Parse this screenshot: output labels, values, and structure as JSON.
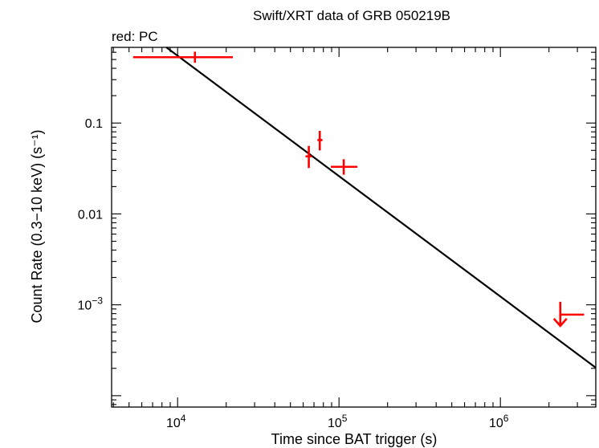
{
  "chart_data": {
    "type": "scatter",
    "title": "Swift/XRT data of GRB 050219B",
    "subtitle": "red: PC",
    "xlabel": "Time since BAT trigger (s)",
    "ylabel": "Count Rate (0.3−10 keV) (s⁻¹)",
    "xscale": "log",
    "yscale": "log",
    "xlim": [
      3900,
      3900000
    ],
    "ylim": [
      7.5e-05,
      0.68
    ],
    "grid": false,
    "x_tick_labels": [
      {
        "value": 10000,
        "base": "10",
        "exp": "4"
      },
      {
        "value": 100000,
        "base": "10",
        "exp": "5"
      },
      {
        "value": 1000000,
        "base": "10",
        "exp": "6"
      }
    ],
    "y_tick_labels": [
      {
        "value": 0.1,
        "text": "0.1"
      },
      {
        "value": 0.01,
        "text": "0.01"
      },
      {
        "value": 0.001,
        "base": "10",
        "exp": "−3"
      }
    ],
    "series": [
      {
        "mode": "PC",
        "color": "#ff0000",
        "points": [
          {
            "x": 12800,
            "xlo": 5300,
            "xhi": 22000,
            "y": 0.53,
            "ylo": 0.46,
            "yhi": 0.61
          },
          {
            "x": 65000,
            "xlo": 62000,
            "xhi": 68000,
            "y": 0.043,
            "ylo": 0.032,
            "yhi": 0.056
          },
          {
            "x": 76000,
            "xlo": 73500,
            "xhi": 79000,
            "y": 0.065,
            "ylo": 0.05,
            "yhi": 0.082
          },
          {
            "x": 107000,
            "xlo": 89000,
            "xhi": 130000,
            "y": 0.033,
            "ylo": 0.027,
            "yhi": 0.04
          }
        ],
        "upper_limits": [
          {
            "x": 2350000,
            "xlo": 2350000,
            "xhi": 3300000,
            "y": 0.00078
          }
        ]
      }
    ],
    "model": {
      "type": "power-law",
      "color": "#000000",
      "points": [
        {
          "x": 8520,
          "y": 0.68
        },
        {
          "x": 3900000,
          "y": 0.000203
        }
      ]
    }
  }
}
